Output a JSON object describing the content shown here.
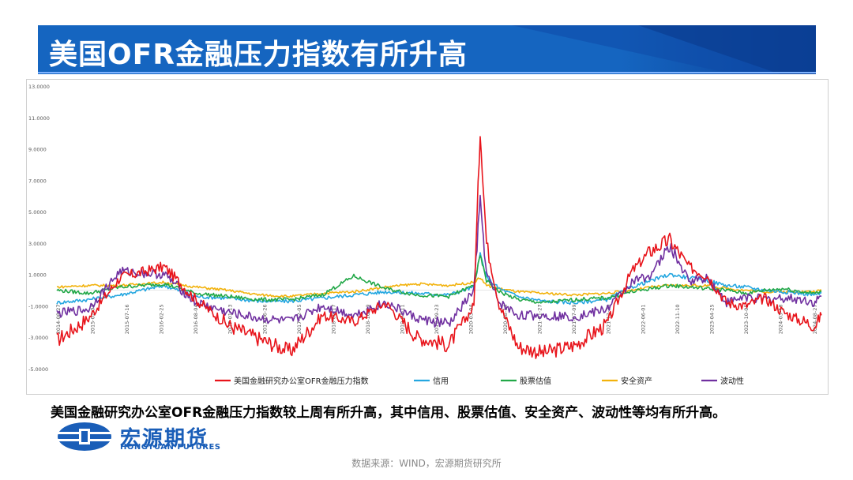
{
  "page": {
    "title": "美国OFR金融压力指数有所升高",
    "caption": "美国金融研究办公室OFR金融压力指数较上周有所升高，其中信用、股票估值、安全资产、波动性等均有所升高。",
    "logo_cn": "宏源期货",
    "logo_en": "HONGYUAN FUTURES",
    "logo_icon": "hongyuan-logo-icon",
    "source": "数据来源：WIND，宏源期货研究所",
    "colors": {
      "title_bg": "#1565c0",
      "title_bg_dark": "#0d47a1",
      "brand": "#1a5eb8"
    }
  },
  "chart_data": {
    "type": "line",
    "ylim": [
      -5,
      13
    ],
    "yticks": [
      "13.0000",
      "11.0000",
      "9.0000",
      "7.0000",
      "5.0000",
      "3.0000",
      "1.0000",
      "-1.0000",
      "-3.0000",
      "-5.0000"
    ],
    "ytick_values": [
      13,
      11,
      9,
      7,
      5,
      3,
      1,
      -1,
      -3,
      -5
    ],
    "xlabels": [
      "2014-08-27",
      "2015-02-03",
      "2015-07-16",
      "2016-02-25",
      "2016-08-04",
      "2017-01-13",
      "2017-06-26",
      "2017-12-05",
      "2018-05-17",
      "2018-10-29",
      "2019-04-11",
      "2019-09-23",
      "2020-03-04",
      "2020-08-14",
      "2021-01-27",
      "2021-07-09",
      "2021-12-20",
      "2022-06-01",
      "2022-11-10",
      "2023-04-25",
      "2023-10-05",
      "2024-03-18",
      "2024-08-27"
    ],
    "x": [
      "2014-08",
      "2015-01",
      "2015-06",
      "2016-01",
      "2016-06",
      "2016-11",
      "2017-04",
      "2017-09",
      "2018-02",
      "2018-07",
      "2018-12",
      "2019-05",
      "2019-10",
      "2020-02",
      "2020-03",
      "2020-04",
      "2020-06",
      "2020-09",
      "2021-01",
      "2021-06",
      "2021-11",
      "2022-03",
      "2022-06",
      "2022-09",
      "2022-12",
      "2023-03",
      "2023-06",
      "2023-09",
      "2023-12",
      "2024-03",
      "2024-06",
      "2024-08",
      "2024-09"
    ],
    "series": [
      {
        "name": "美国金融研究办公室OFR金融压力指数",
        "color": "#e8141b",
        "values": [
          -3.2,
          -1.8,
          0.8,
          1.5,
          -0.6,
          -2.2,
          -3.1,
          -3.9,
          -1.6,
          -2.0,
          -0.8,
          -3.0,
          -3.5,
          -1.0,
          10.2,
          3.0,
          -0.9,
          -3.6,
          -4.0,
          -3.5,
          -2.2,
          1.2,
          2.5,
          3.2,
          1.5,
          0.9,
          -0.8,
          -1.0,
          -0.5,
          -1.4,
          -2.0,
          -2.2,
          -1.6
        ]
      },
      {
        "name": "信用",
        "color": "#25a7e0",
        "values": [
          -0.8,
          -0.6,
          -0.3,
          0.3,
          -0.4,
          -0.5,
          -0.7,
          -0.7,
          -0.5,
          -0.3,
          -0.1,
          -0.2,
          -0.3,
          0.2,
          2.3,
          0.8,
          0.1,
          -0.4,
          -0.7,
          -0.8,
          -0.6,
          0.2,
          0.6,
          1.0,
          0.8,
          0.6,
          0.3,
          0.2,
          0.0,
          -0.1,
          -0.2,
          -0.3,
          -0.2
        ]
      },
      {
        "name": "股票估值",
        "color": "#22a848",
        "values": [
          0.0,
          -0.2,
          0.2,
          0.4,
          -0.2,
          -0.4,
          -0.6,
          -0.6,
          -0.3,
          0.9,
          0.1,
          -0.3,
          -0.4,
          0.3,
          2.2,
          0.6,
          -0.1,
          -0.6,
          -0.8,
          -0.6,
          -0.5,
          -0.1,
          0.1,
          0.3,
          0.2,
          0.1,
          0.0,
          -0.2,
          0.0,
          0.1,
          -0.1,
          -0.2,
          -0.1
        ]
      },
      {
        "name": "安全资产",
        "color": "#f2b20c",
        "values": [
          0.2,
          0.3,
          0.3,
          0.5,
          0.2,
          0.0,
          -0.3,
          -0.4,
          -0.2,
          -0.1,
          0.2,
          0.4,
          0.3,
          0.5,
          0.8,
          0.3,
          0.1,
          -0.1,
          -0.2,
          -0.3,
          -0.2,
          0.0,
          0.2,
          0.3,
          0.3,
          0.3,
          0.1,
          0.0,
          -0.1,
          -0.1,
          -0.1,
          -0.1,
          0.0
        ]
      },
      {
        "name": "波动性",
        "color": "#7030a0",
        "values": [
          -1.5,
          -1.2,
          1.2,
          1.0,
          -0.8,
          -1.4,
          -1.8,
          -2.0,
          -1.0,
          -1.6,
          -0.8,
          -1.8,
          -2.2,
          0.0,
          5.7,
          1.0,
          -0.8,
          -1.6,
          -1.6,
          -1.7,
          -1.2,
          0.5,
          1.0,
          2.8,
          0.6,
          0.8,
          -0.8,
          -0.4,
          -0.6,
          -0.5,
          -0.6,
          -0.8,
          -0.4
        ]
      }
    ],
    "legend_position": "bottom",
    "grid": false
  }
}
